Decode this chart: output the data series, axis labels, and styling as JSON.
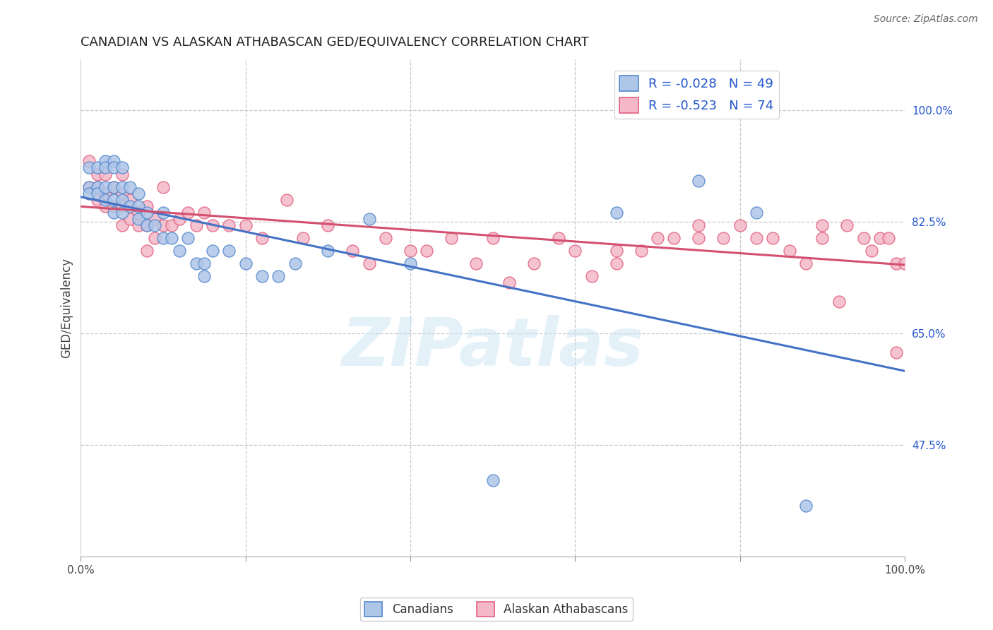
{
  "title": "CANADIAN VS ALASKAN ATHABASCAN GED/EQUIVALENCY CORRELATION CHART",
  "source": "Source: ZipAtlas.com",
  "ylabel": "GED/Equivalency",
  "watermark": "ZIPatlas",
  "xlim": [
    0,
    1
  ],
  "ylim": [
    0.3,
    1.08
  ],
  "xtick_vals": [
    0.0,
    0.2,
    0.4,
    0.6,
    0.8,
    1.0
  ],
  "xtick_labels": [
    "0.0%",
    "",
    "",
    "",
    "",
    "100.0%"
  ],
  "right_ytick_vals": [
    1.0,
    0.825,
    0.65,
    0.475
  ],
  "right_ytick_labels": [
    "100.0%",
    "82.5%",
    "65.0%",
    "47.5%"
  ],
  "grid_ytick_vals": [
    1.0,
    0.825,
    0.65,
    0.475
  ],
  "canadian_R": "-0.028",
  "canadian_N": "49",
  "alaskan_R": "-0.523",
  "alaskan_N": "74",
  "canadian_color": "#aec6e8",
  "alaskan_color": "#f4b8c8",
  "canadian_edge_color": "#5588cc",
  "alaskan_edge_color": "#e06080",
  "canadian_line_color": "#4472c4",
  "alaskan_line_color": "#d45070",
  "legend_text_color": "#2255cc",
  "background_color": "#ffffff",
  "grid_color": "#c8c8c8",
  "canadian_x": [
    0.01,
    0.01,
    0.01,
    0.02,
    0.02,
    0.02,
    0.03,
    0.03,
    0.03,
    0.03,
    0.04,
    0.04,
    0.04,
    0.04,
    0.04,
    0.05,
    0.05,
    0.05,
    0.05,
    0.06,
    0.06,
    0.07,
    0.07,
    0.07,
    0.08,
    0.08,
    0.09,
    0.1,
    0.1,
    0.11,
    0.12,
    0.13,
    0.14,
    0.15,
    0.15,
    0.16,
    0.18,
    0.2,
    0.22,
    0.24,
    0.26,
    0.3,
    0.35,
    0.4,
    0.5,
    0.65,
    0.75,
    0.82,
    0.88
  ],
  "canadian_y": [
    0.91,
    0.88,
    0.87,
    0.91,
    0.88,
    0.87,
    0.92,
    0.91,
    0.88,
    0.86,
    0.92,
    0.91,
    0.88,
    0.86,
    0.84,
    0.91,
    0.88,
    0.86,
    0.84,
    0.88,
    0.85,
    0.87,
    0.85,
    0.83,
    0.84,
    0.82,
    0.82,
    0.84,
    0.8,
    0.8,
    0.78,
    0.8,
    0.76,
    0.76,
    0.74,
    0.78,
    0.78,
    0.76,
    0.74,
    0.74,
    0.76,
    0.78,
    0.83,
    0.76,
    0.42,
    0.84,
    0.89,
    0.84,
    0.38
  ],
  "alaskan_x": [
    0.01,
    0.01,
    0.02,
    0.02,
    0.02,
    0.03,
    0.03,
    0.03,
    0.04,
    0.04,
    0.05,
    0.05,
    0.05,
    0.05,
    0.06,
    0.06,
    0.07,
    0.07,
    0.08,
    0.08,
    0.08,
    0.09,
    0.09,
    0.1,
    0.1,
    0.11,
    0.12,
    0.13,
    0.14,
    0.15,
    0.16,
    0.18,
    0.2,
    0.22,
    0.25,
    0.27,
    0.3,
    0.33,
    0.35,
    0.37,
    0.4,
    0.42,
    0.45,
    0.48,
    0.5,
    0.52,
    0.55,
    0.58,
    0.6,
    0.62,
    0.65,
    0.65,
    0.68,
    0.7,
    0.72,
    0.75,
    0.75,
    0.78,
    0.8,
    0.82,
    0.84,
    0.86,
    0.88,
    0.9,
    0.9,
    0.92,
    0.93,
    0.95,
    0.96,
    0.97,
    0.98,
    0.99,
    0.99,
    1.0
  ],
  "alaskan_y": [
    0.92,
    0.88,
    0.9,
    0.88,
    0.86,
    0.9,
    0.87,
    0.85,
    0.88,
    0.85,
    0.9,
    0.87,
    0.85,
    0.82,
    0.86,
    0.83,
    0.84,
    0.82,
    0.85,
    0.82,
    0.78,
    0.83,
    0.8,
    0.88,
    0.82,
    0.82,
    0.83,
    0.84,
    0.82,
    0.84,
    0.82,
    0.82,
    0.82,
    0.8,
    0.86,
    0.8,
    0.82,
    0.78,
    0.76,
    0.8,
    0.78,
    0.78,
    0.8,
    0.76,
    0.8,
    0.73,
    0.76,
    0.8,
    0.78,
    0.74,
    0.78,
    0.76,
    0.78,
    0.8,
    0.8,
    0.8,
    0.82,
    0.8,
    0.82,
    0.8,
    0.8,
    0.78,
    0.76,
    0.82,
    0.8,
    0.7,
    0.82,
    0.8,
    0.78,
    0.8,
    0.8,
    0.76,
    0.62,
    0.76
  ]
}
